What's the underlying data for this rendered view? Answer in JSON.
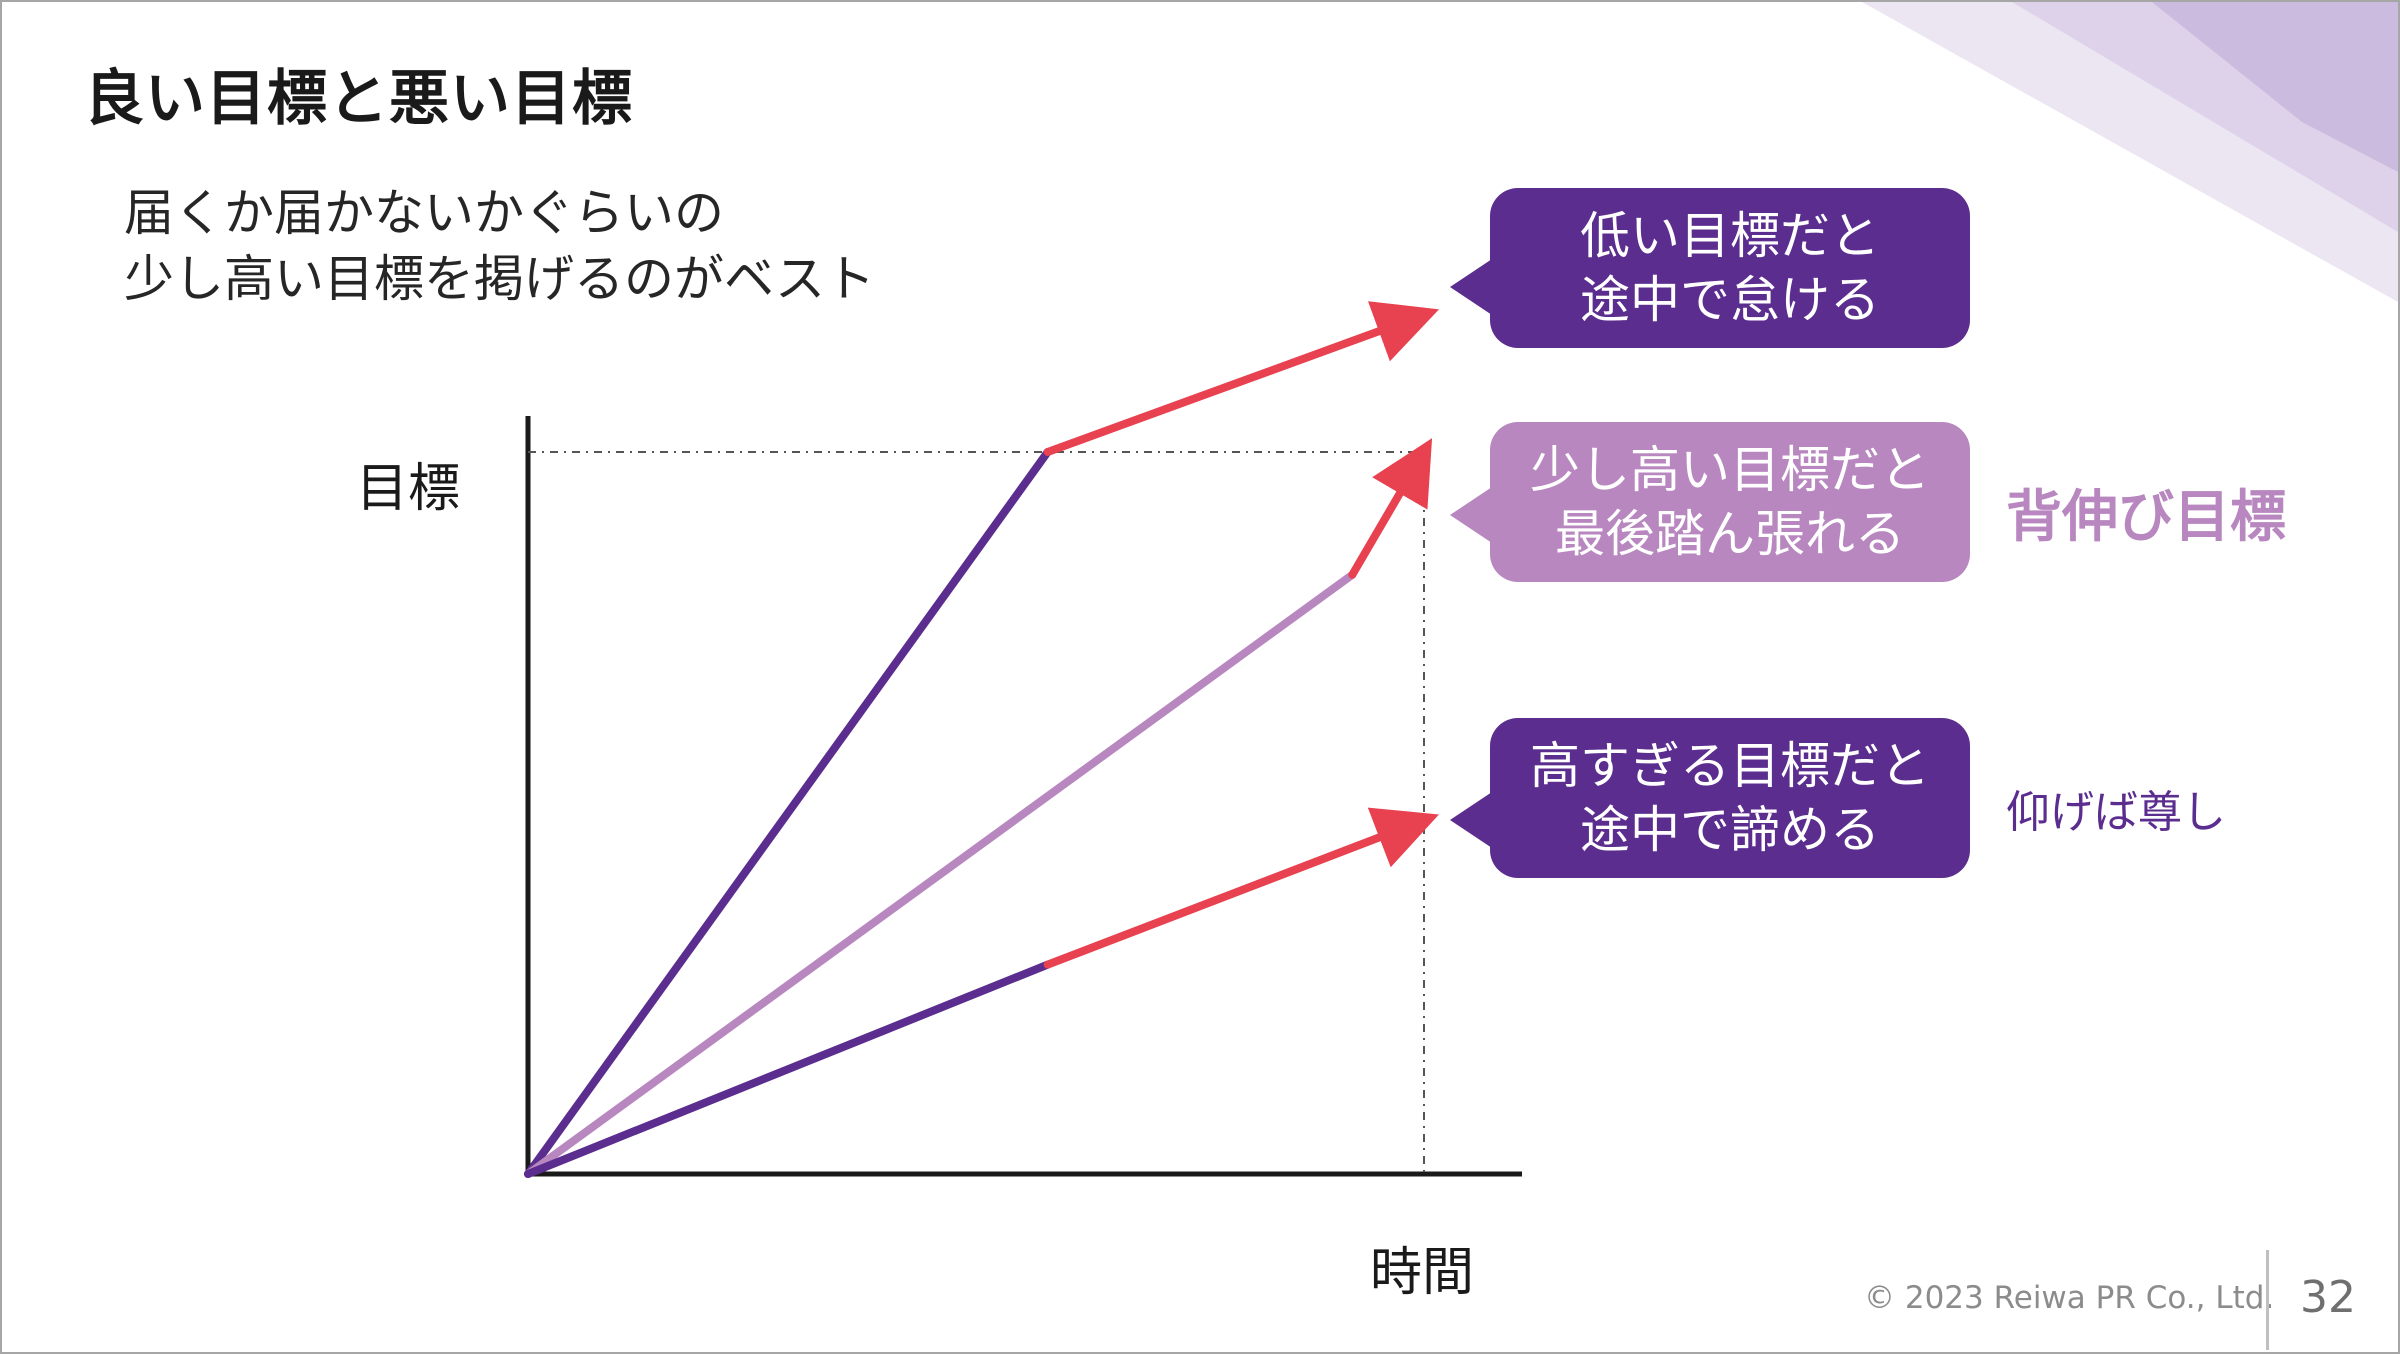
{
  "title": "良い目標と悪い目標",
  "subtitle": {
    "line1": "届くか届かないかぐらいの",
    "line2": "少し高い目標を掲げるのがベスト"
  },
  "axes": {
    "y_label": "目標",
    "x_label": "時間"
  },
  "bubbles": {
    "low": {
      "line1": "低い目標だと",
      "line2": "途中で怠ける"
    },
    "mid": {
      "line1": "少し高い目標だと",
      "line2": "最後踏ん張れる"
    },
    "high": {
      "line1": "高すぎる目標だと",
      "line2": "途中で諦める"
    }
  },
  "side_labels": {
    "stretch": "背伸び目標",
    "proverb": "仰げば尊し"
  },
  "footer": {
    "copyright": "© 2023 Reiwa PR Co., Ltd.",
    "page": "32"
  },
  "colors": {
    "dark_purple": "#5b2d8e",
    "light_purple": "#b887c0",
    "red": "#e8414f",
    "axis": "#1a1a1a"
  },
  "chart_data": {
    "type": "line",
    "xlabel": "時間",
    "ylabel": "目標",
    "xlim": [
      0,
      1
    ],
    "ylim": [
      0,
      1
    ],
    "target_level": 1,
    "target_time": 1,
    "series": [
      {
        "name": "低い目標",
        "points": [
          [
            0,
            0
          ],
          [
            0.58,
            1.0
          ]
        ],
        "continuation": [
          [
            0.58,
            1.0
          ],
          [
            1.0,
            1.19
          ]
        ]
      },
      {
        "name": "少し高い目標",
        "points": [
          [
            0,
            0
          ],
          [
            0.92,
            0.83
          ],
          [
            1.0,
            1.0
          ]
        ]
      },
      {
        "name": "高すぎる目標",
        "points": [
          [
            0,
            0
          ],
          [
            0.58,
            0.29
          ]
        ],
        "continuation": [
          [
            0.58,
            0.29
          ],
          [
            1.0,
            0.49
          ]
        ]
      }
    ]
  }
}
